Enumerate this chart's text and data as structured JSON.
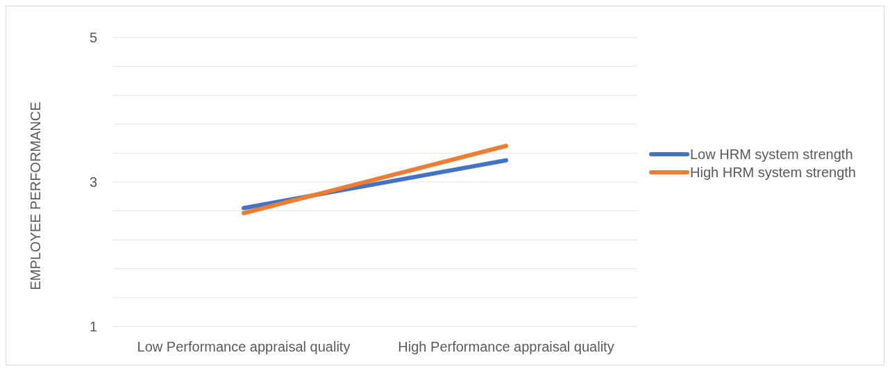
{
  "chart_data": {
    "type": "line",
    "ylabel": "EMPLOYEE PERFORMANCE",
    "categories": [
      "Low Performance appraisal quality",
      "High Performance appraisal quality"
    ],
    "series": [
      {
        "name": "Low HRM system strength",
        "color": "#4472c4",
        "values": [
          2.64,
          3.3
        ]
      },
      {
        "name": "High HRM system strength",
        "color": "#ed7d31",
        "values": [
          2.57,
          3.5
        ]
      }
    ],
    "ylim": [
      1,
      5
    ],
    "yticks": [
      1,
      {
        "value": 1.4,
        "label": null
      },
      {
        "value": 1.8,
        "label": null
      },
      {
        "value": 2.2,
        "label": null
      },
      {
        "value": 2.6,
        "label": null
      },
      3,
      {
        "value": 3.4,
        "label": null
      },
      {
        "value": 3.8,
        "label": null
      },
      {
        "value": 4.2,
        "label": null
      },
      {
        "value": 4.6,
        "label": null
      },
      5
    ],
    "grid": "y",
    "legend": "right",
    "marker": "none",
    "line_style": "solid"
  }
}
